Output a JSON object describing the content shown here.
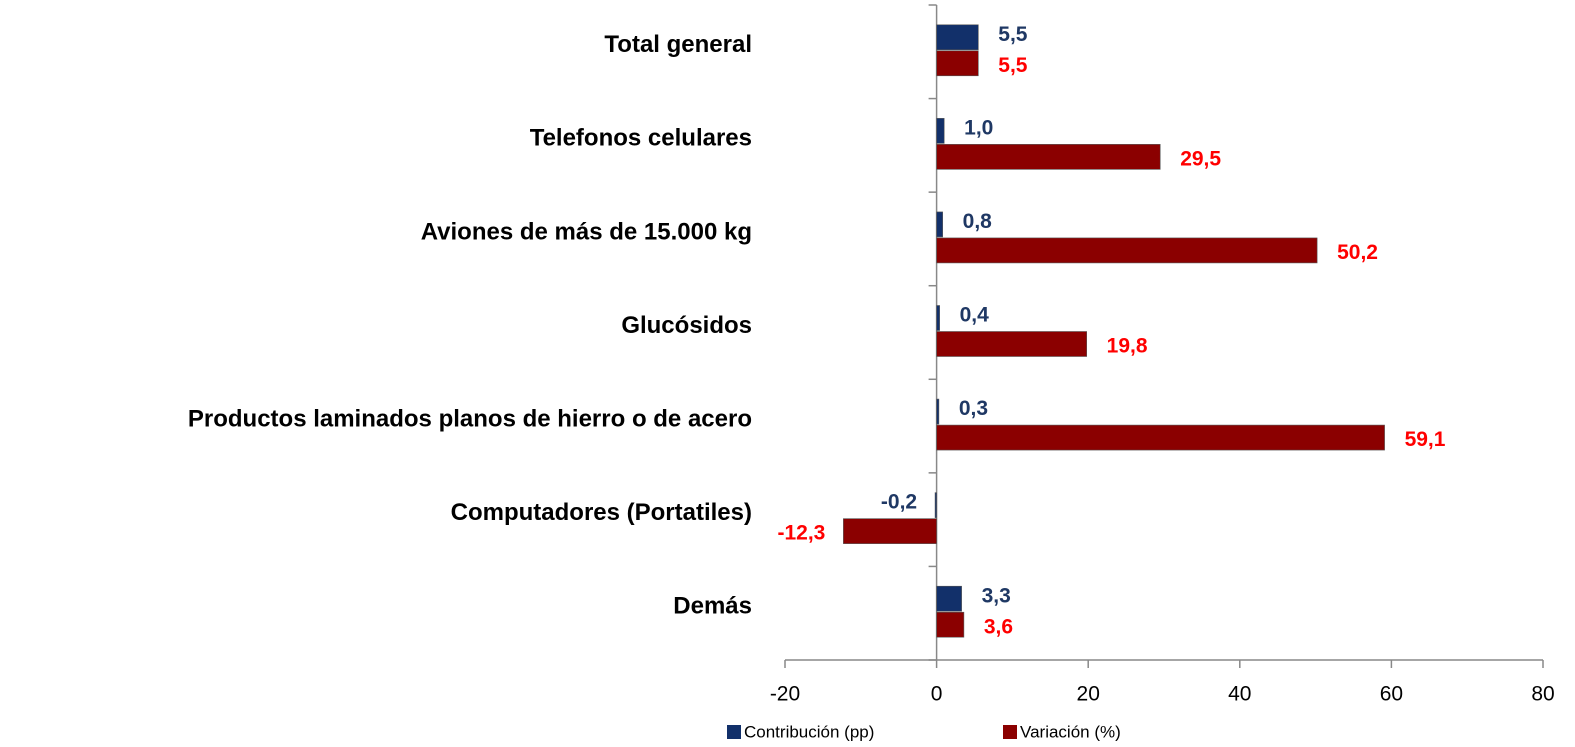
{
  "chart_data": {
    "type": "hbar",
    "categories": [
      "Total general",
      "Telefonos celulares",
      "Aviones de más de 15.000 kg",
      "Glucósidos",
      "Productos laminados planos de hierro o de acero",
      "Computadores (Portatiles)",
      "Demás"
    ],
    "series": [
      {
        "name": "Contribución (pp)",
        "color": "#12306a",
        "label_color": "#1f3864",
        "values": [
          5.5,
          1.0,
          0.8,
          0.4,
          0.3,
          -0.2,
          3.3
        ],
        "value_labels": [
          "5,5",
          "1,0",
          "0,8",
          "0,4",
          "0,3",
          "-0,2",
          "3,3"
        ]
      },
      {
        "name": "Variación (%)",
        "color": "#8b0000",
        "label_color": "#ff0000",
        "values": [
          5.5,
          29.5,
          50.2,
          19.8,
          59.1,
          -12.3,
          3.6
        ],
        "value_labels": [
          "5,5",
          "29,5",
          "50,2",
          "19,8",
          "59,1",
          "-12,3",
          "3,6"
        ]
      }
    ],
    "xlim": [
      -20,
      80
    ],
    "xticks": [
      -20,
      0,
      20,
      40,
      60,
      80
    ],
    "legend": "bottom"
  }
}
